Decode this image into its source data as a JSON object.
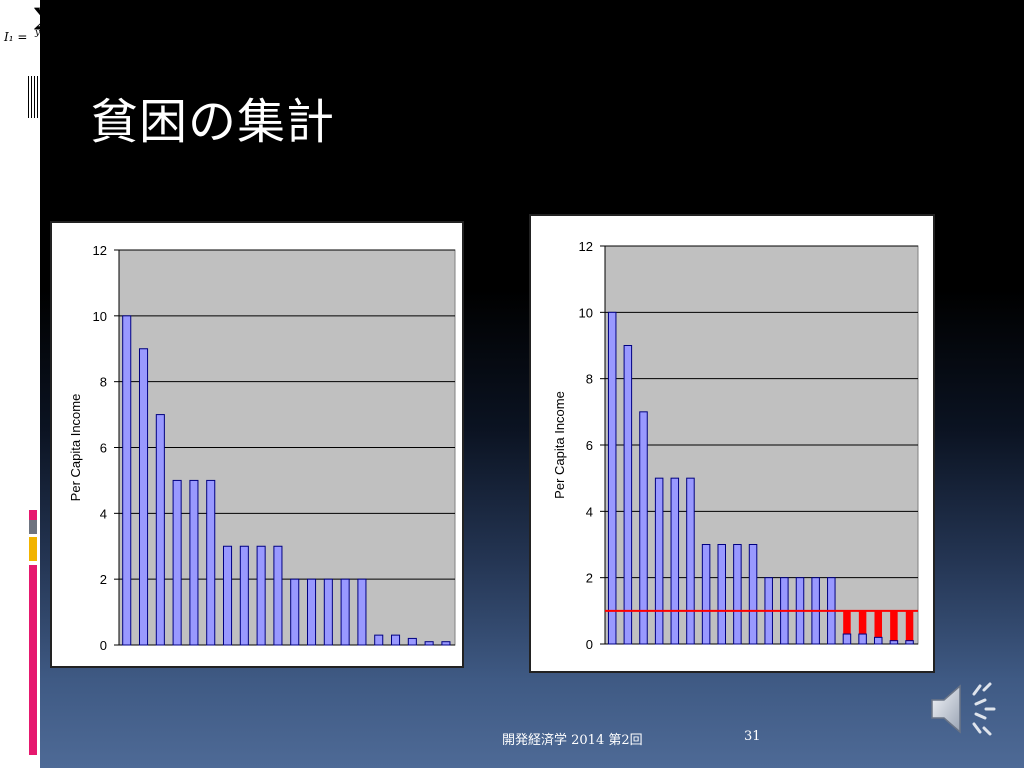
{
  "slide": {
    "title": "貧困の集計",
    "formula_fragment": "I₁ =",
    "formula_sigma": "∑",
    "formula_denominator": "y",
    "footer": "開発経済学  2014 第2回",
    "page_number": "31"
  },
  "colors": {
    "plot_bg": "#c0c0c0",
    "bar_fill": "#9999ff",
    "bar_stroke": "#000080",
    "poverty_line": "#ff0000",
    "gap_fill": "#ff0000",
    "accent_magenta": "#e6186e",
    "accent_gray": "#6e7480",
    "accent_gold": "#f2b400"
  },
  "chart_data": [
    {
      "type": "bar",
      "ylabel": "Per Capita Income",
      "ylim": [
        0,
        12
      ],
      "yticks": [
        "0",
        "2",
        "4",
        "6",
        "8",
        "10",
        "12"
      ],
      "values": [
        10,
        9,
        7,
        5,
        5,
        5,
        3,
        3,
        3,
        3,
        2,
        2,
        2,
        2,
        2,
        0.3,
        0.3,
        0.2,
        0.1,
        0.1
      ]
    },
    {
      "type": "bar",
      "ylabel": "Per Capita Income",
      "ylim": [
        0,
        12
      ],
      "yticks": [
        "0",
        "2",
        "4",
        "6",
        "8",
        "10",
        "12"
      ],
      "values": [
        10,
        9,
        7,
        5,
        5,
        5,
        3,
        3,
        3,
        3,
        2,
        2,
        2,
        2,
        2,
        0.3,
        0.3,
        0.2,
        0.1,
        0.1
      ],
      "poverty_line": 1.0
    }
  ]
}
